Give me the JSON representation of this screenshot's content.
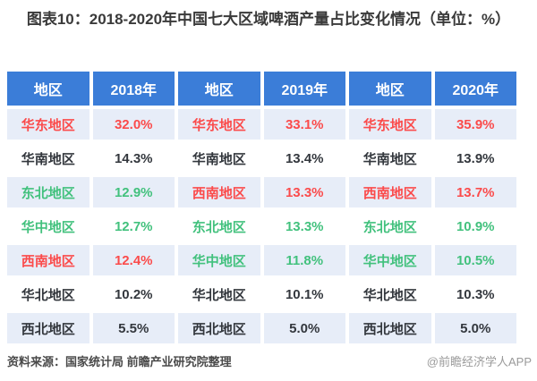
{
  "title": "图表10：2018-2020年中国七大区域啤酒产量占比变化情况（单位：%）",
  "colors": {
    "header_bg": "#3b7dd8",
    "row_shaded_bg": "#e7edf8",
    "red": "#fb4b4b",
    "green": "#42c17d",
    "dark": "#33373d"
  },
  "table": {
    "headers": [
      "地区",
      "2018年",
      "地区",
      "2019年",
      "地区",
      "2020年"
    ],
    "rows": [
      {
        "cells": [
          {
            "text": "华东地区",
            "color": "red"
          },
          {
            "text": "32.0%",
            "color": "red"
          },
          {
            "text": "华东地区",
            "color": "red"
          },
          {
            "text": "33.1%",
            "color": "red"
          },
          {
            "text": "华东地区",
            "color": "red"
          },
          {
            "text": "35.9%",
            "color": "red"
          }
        ]
      },
      {
        "cells": [
          {
            "text": "华南地区",
            "color": "dark"
          },
          {
            "text": "14.3%",
            "color": "dark"
          },
          {
            "text": "华南地区",
            "color": "dark"
          },
          {
            "text": "13.4%",
            "color": "dark"
          },
          {
            "text": "华南地区",
            "color": "dark"
          },
          {
            "text": "13.9%",
            "color": "dark"
          }
        ]
      },
      {
        "cells": [
          {
            "text": "东北地区",
            "color": "green"
          },
          {
            "text": "12.9%",
            "color": "green"
          },
          {
            "text": "西南地区",
            "color": "red"
          },
          {
            "text": "13.3%",
            "color": "red"
          },
          {
            "text": "西南地区",
            "color": "red"
          },
          {
            "text": "13.7%",
            "color": "red"
          }
        ]
      },
      {
        "cells": [
          {
            "text": "华中地区",
            "color": "green"
          },
          {
            "text": "12.7%",
            "color": "green"
          },
          {
            "text": "东北地区",
            "color": "green"
          },
          {
            "text": "13.3%",
            "color": "green"
          },
          {
            "text": "东北地区",
            "color": "green"
          },
          {
            "text": "10.9%",
            "color": "green"
          }
        ]
      },
      {
        "cells": [
          {
            "text": "西南地区",
            "color": "red"
          },
          {
            "text": "12.4%",
            "color": "red"
          },
          {
            "text": "华中地区",
            "color": "green"
          },
          {
            "text": "11.8%",
            "color": "green"
          },
          {
            "text": "华中地区",
            "color": "green"
          },
          {
            "text": "10.5%",
            "color": "green"
          }
        ]
      },
      {
        "cells": [
          {
            "text": "华北地区",
            "color": "dark"
          },
          {
            "text": "10.2%",
            "color": "dark"
          },
          {
            "text": "华北地区",
            "color": "dark"
          },
          {
            "text": "10.1%",
            "color": "dark"
          },
          {
            "text": "华北地区",
            "color": "dark"
          },
          {
            "text": "10.3%",
            "color": "dark"
          }
        ]
      },
      {
        "cells": [
          {
            "text": "西北地区",
            "color": "dark"
          },
          {
            "text": "5.5%",
            "color": "dark"
          },
          {
            "text": "西北地区",
            "color": "dark"
          },
          {
            "text": "5.0%",
            "color": "dark"
          },
          {
            "text": "西北地区",
            "color": "dark"
          },
          {
            "text": "5.0%",
            "color": "dark"
          }
        ]
      }
    ]
  },
  "footer": {
    "source": "资料来源：国家统计局 前瞻产业研究院整理",
    "credit": "@前瞻经济学人APP"
  },
  "watermark": {
    "text": "前瞻产业研究院"
  },
  "chart_data": {
    "type": "table",
    "title": "图表10：2018-2020年中国七大区域啤酒产量占比变化情况",
    "unit": "%",
    "columns": [
      "地区",
      "2018年",
      "地区",
      "2019年",
      "地区",
      "2020年"
    ],
    "years": [
      {
        "year": "2018年",
        "values": [
          {
            "region": "华东地区",
            "share": 32.0
          },
          {
            "region": "华南地区",
            "share": 14.3
          },
          {
            "region": "东北地区",
            "share": 12.9
          },
          {
            "region": "华中地区",
            "share": 12.7
          },
          {
            "region": "西南地区",
            "share": 12.4
          },
          {
            "region": "华北地区",
            "share": 10.2
          },
          {
            "region": "西北地区",
            "share": 5.5
          }
        ]
      },
      {
        "year": "2019年",
        "values": [
          {
            "region": "华东地区",
            "share": 33.1
          },
          {
            "region": "华南地区",
            "share": 13.4
          },
          {
            "region": "西南地区",
            "share": 13.3
          },
          {
            "region": "东北地区",
            "share": 13.3
          },
          {
            "region": "华中地区",
            "share": 11.8
          },
          {
            "region": "华北地区",
            "share": 10.1
          },
          {
            "region": "西北地区",
            "share": 5.0
          }
        ]
      },
      {
        "year": "2020年",
        "values": [
          {
            "region": "华东地区",
            "share": 35.9
          },
          {
            "region": "华南地区",
            "share": 13.9
          },
          {
            "region": "西南地区",
            "share": 13.7
          },
          {
            "region": "东北地区",
            "share": 10.9
          },
          {
            "region": "华中地区",
            "share": 10.5
          },
          {
            "region": "华北地区",
            "share": 10.3
          },
          {
            "region": "西北地区",
            "share": 5.0
          }
        ]
      }
    ]
  }
}
